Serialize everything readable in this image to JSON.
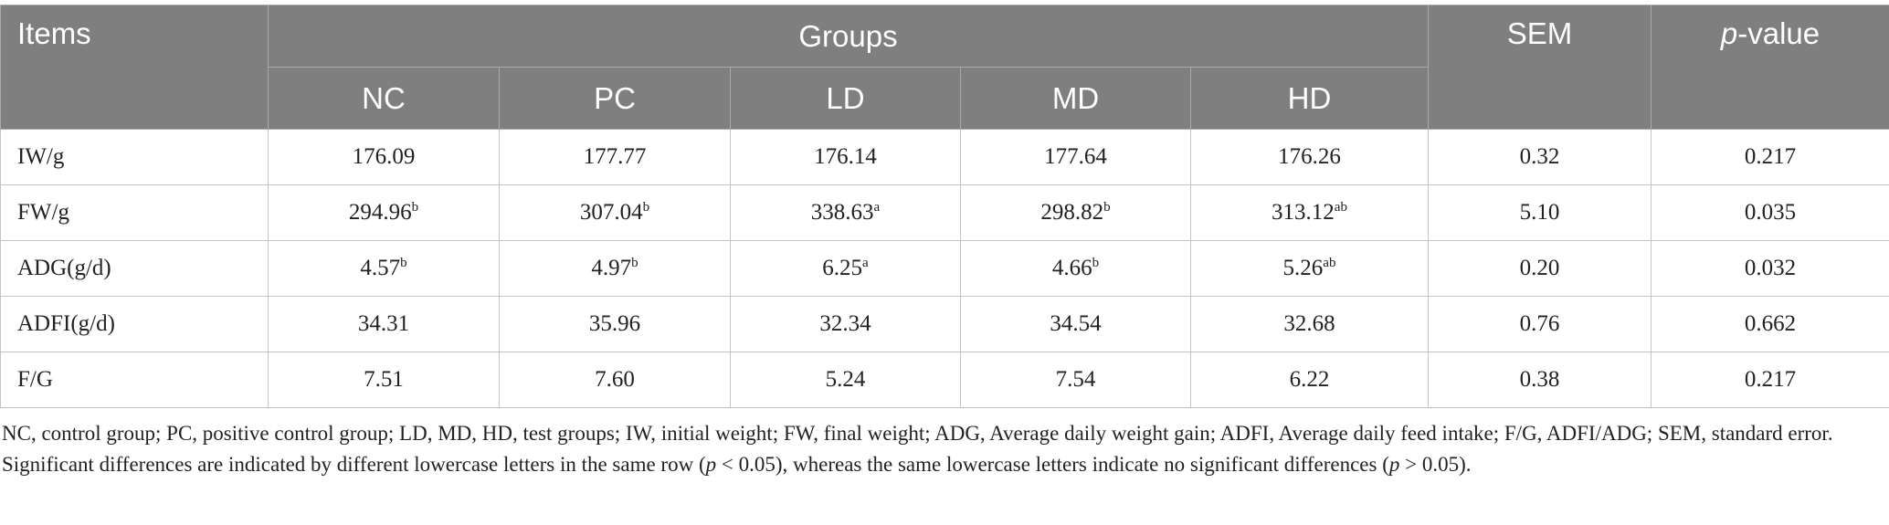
{
  "header": {
    "items": "Items",
    "groups": "Groups",
    "sem": "SEM",
    "pvalue": {
      "italic": "p",
      "rest": "-value"
    },
    "subgroups": [
      "NC",
      "PC",
      "LD",
      "MD",
      "HD"
    ]
  },
  "table": {
    "rows": [
      {
        "label": "IW/g",
        "cells": [
          {
            "text": "176.09"
          },
          {
            "text": "177.77"
          },
          {
            "text": "176.14"
          },
          {
            "text": "177.64"
          },
          {
            "text": "176.26"
          }
        ],
        "sem": "0.32",
        "p": "0.217"
      },
      {
        "label": "FW/g",
        "cells": [
          {
            "text": "294.96",
            "sup": "b"
          },
          {
            "text": "307.04",
            "sup": "b"
          },
          {
            "text": "338.63",
            "sup": "a"
          },
          {
            "text": "298.82",
            "sup": "b"
          },
          {
            "text": "313.12",
            "sup": "ab"
          }
        ],
        "sem": "5.10",
        "p": "0.035"
      },
      {
        "label": "ADG(g/d)",
        "cells": [
          {
            "text": "4.57",
            "sup": "b"
          },
          {
            "text": "4.97",
            "sup": "b"
          },
          {
            "text": "6.25",
            "sup": "a"
          },
          {
            "text": "4.66",
            "sup": "b"
          },
          {
            "text": "5.26",
            "sup": "ab"
          }
        ],
        "sem": "0.20",
        "p": "0.032"
      },
      {
        "label": "ADFI(g/d)",
        "cells": [
          {
            "text": "34.31"
          },
          {
            "text": "35.96"
          },
          {
            "text": "32.34"
          },
          {
            "text": "34.54"
          },
          {
            "text": "32.68"
          }
        ],
        "sem": "0.76",
        "p": "0.662"
      },
      {
        "label": "F/G",
        "cells": [
          {
            "text": "7.51"
          },
          {
            "text": "7.60"
          },
          {
            "text": "5.24"
          },
          {
            "text": "7.54"
          },
          {
            "text": "6.22"
          }
        ],
        "sem": "0.38",
        "p": "0.217"
      }
    ]
  },
  "footnote": [
    {
      "text": "NC, control group; PC, positive control group; LD, MD, HD, test groups; IW, initial weight; FW, final weight; ADG, Average daily weight gain; ADFI, Average daily feed intake; F/G, ADFI/ADG; SEM, standard error. Significant differences are indicated by different lowercase letters in the same row (",
      "italic": false
    },
    {
      "text": "p",
      "italic": true
    },
    {
      "text": " < 0.05), whereas the same lowercase letters indicate no significant differences (",
      "italic": false
    },
    {
      "text": "p",
      "italic": true
    },
    {
      "text": " > 0.05).",
      "italic": false
    }
  ]
}
